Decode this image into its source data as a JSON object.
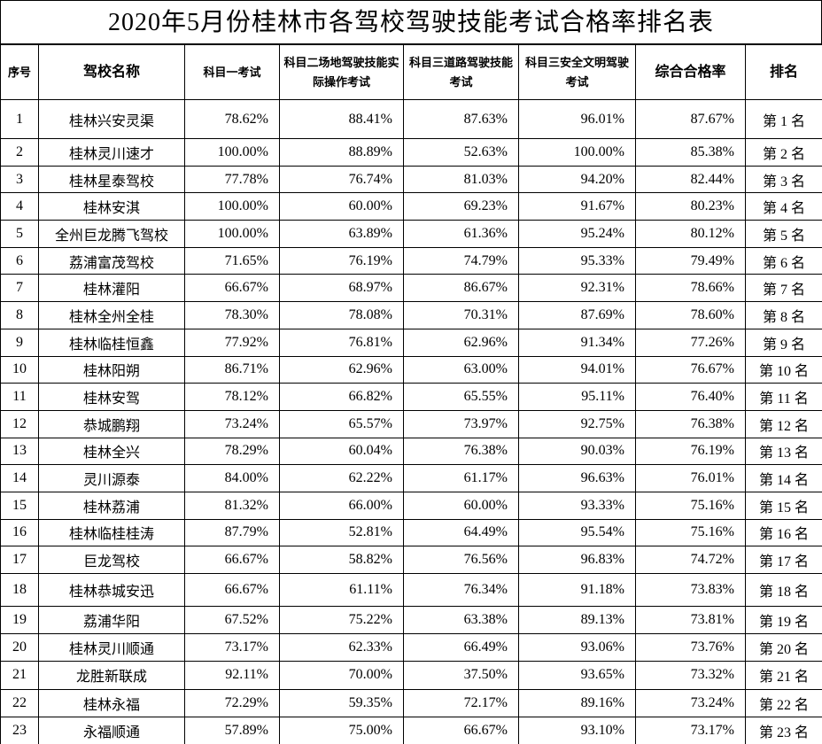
{
  "title": "2020年5月份桂林市各驾校驾驶技能考试合格率排名表",
  "table": {
    "headers": [
      "序号",
      "驾校名称",
      "科目一考试",
      "科目二场地驾驶技能实际操作考试",
      "科目三道路驾驶技能考试",
      "科目三安全文明驾驶考试",
      "综合合格率",
      "排名"
    ],
    "rows": [
      [
        "1",
        "桂林兴安灵渠",
        "78.62%",
        "88.41%",
        "87.63%",
        "96.01%",
        "87.67%",
        "第 1 名"
      ],
      [
        "2",
        "桂林灵川速才",
        "100.00%",
        "88.89%",
        "52.63%",
        "100.00%",
        "85.38%",
        "第 2 名"
      ],
      [
        "3",
        "桂林星泰驾校",
        "77.78%",
        "76.74%",
        "81.03%",
        "94.20%",
        "82.44%",
        "第 3 名"
      ],
      [
        "4",
        "桂林安淇",
        "100.00%",
        "60.00%",
        "69.23%",
        "91.67%",
        "80.23%",
        "第 4 名"
      ],
      [
        "5",
        "全州巨龙腾飞驾校",
        "100.00%",
        "63.89%",
        "61.36%",
        "95.24%",
        "80.12%",
        "第 5 名"
      ],
      [
        "6",
        "荔浦富茂驾校",
        "71.65%",
        "76.19%",
        "74.79%",
        "95.33%",
        "79.49%",
        "第 6 名"
      ],
      [
        "7",
        "桂林灌阳",
        "66.67%",
        "68.97%",
        "86.67%",
        "92.31%",
        "78.66%",
        "第 7 名"
      ],
      [
        "8",
        "桂林全州全桂",
        "78.30%",
        "78.08%",
        "70.31%",
        "87.69%",
        "78.60%",
        "第 8 名"
      ],
      [
        "9",
        "桂林临桂恒鑫",
        "77.92%",
        "76.81%",
        "62.96%",
        "91.34%",
        "77.26%",
        "第 9 名"
      ],
      [
        "10",
        "桂林阳朔",
        "86.71%",
        "62.96%",
        "63.00%",
        "94.01%",
        "76.67%",
        "第 10 名"
      ],
      [
        "11",
        "桂林安驾",
        "78.12%",
        "66.82%",
        "65.55%",
        "95.11%",
        "76.40%",
        "第 11 名"
      ],
      [
        "12",
        "恭城鹏翔",
        "73.24%",
        "65.57%",
        "73.97%",
        "92.75%",
        "76.38%",
        "第 12 名"
      ],
      [
        "13",
        "桂林全兴",
        "78.29%",
        "60.04%",
        "76.38%",
        "90.03%",
        "76.19%",
        "第 13 名"
      ],
      [
        "14",
        "灵川源泰",
        "84.00%",
        "62.22%",
        "61.17%",
        "96.63%",
        "76.01%",
        "第 14 名"
      ],
      [
        "15",
        "桂林荔浦",
        "81.32%",
        "66.00%",
        "60.00%",
        "93.33%",
        "75.16%",
        "第 15 名"
      ],
      [
        "16",
        "桂林临桂桂涛",
        "87.79%",
        "52.81%",
        "64.49%",
        "95.54%",
        "75.16%",
        "第 16 名"
      ],
      [
        "17",
        "巨龙驾校",
        "66.67%",
        "58.82%",
        "76.56%",
        "96.83%",
        "74.72%",
        "第 17 名"
      ],
      [
        "18",
        "桂林恭城安迅",
        "66.67%",
        "61.11%",
        "76.34%",
        "91.18%",
        "73.83%",
        "第 18 名"
      ],
      [
        "19",
        "荔浦华阳",
        "67.52%",
        "75.22%",
        "63.38%",
        "89.13%",
        "73.81%",
        "第 19 名"
      ],
      [
        "20",
        "桂林灵川顺通",
        "73.17%",
        "62.33%",
        "66.49%",
        "93.06%",
        "73.76%",
        "第 20 名"
      ],
      [
        "21",
        "龙胜新联成",
        "92.11%",
        "70.00%",
        "37.50%",
        "93.65%",
        "73.32%",
        "第 21 名"
      ],
      [
        "22",
        "桂林永福",
        "72.29%",
        "59.35%",
        "72.17%",
        "89.16%",
        "73.24%",
        "第 22 名"
      ],
      [
        "23",
        "永福顺通",
        "57.89%",
        "75.00%",
        "66.67%",
        "93.10%",
        "73.17%",
        "第 23 名"
      ]
    ]
  }
}
